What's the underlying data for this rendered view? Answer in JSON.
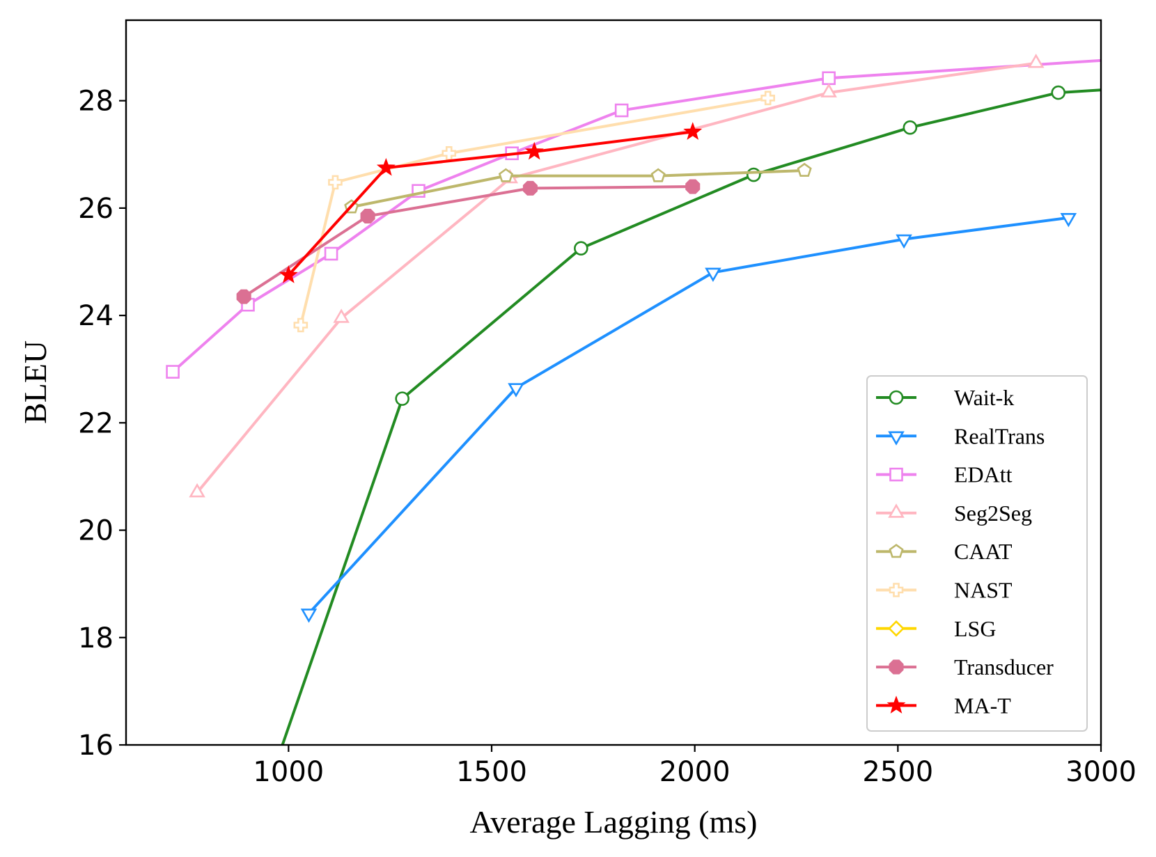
{
  "chart_data": {
    "type": "line",
    "title": "",
    "xlabel": "Average Lagging (ms)",
    "ylabel": "BLEU",
    "xlim": [
      600,
      3000
    ],
    "ylim": [
      16,
      29.5
    ],
    "xticks": [
      1000,
      1500,
      2000,
      2500,
      3000
    ],
    "yticks": [
      16,
      18,
      20,
      22,
      24,
      26,
      28
    ],
    "grid": false,
    "legend_position": "bottom-right",
    "series": [
      {
        "name": "Wait-k",
        "color": "#228B22",
        "marker": "circle",
        "filled": false,
        "x": [
          985,
          1280,
          1720,
          2145,
          2530,
          2895,
          3000
        ],
        "y": [
          16.0,
          22.45,
          25.25,
          26.62,
          27.5,
          28.15,
          28.2
        ]
      },
      {
        "name": "RealTrans",
        "color": "#1E90FF",
        "marker": "triangle-down",
        "filled": false,
        "x": [
          1050,
          1560,
          2045,
          2515,
          2920
        ],
        "y": [
          18.45,
          22.65,
          24.8,
          25.42,
          25.82
        ]
      },
      {
        "name": "EDAtt",
        "color": "#EE82EE",
        "marker": "square",
        "filled": false,
        "x": [
          715,
          900,
          1105,
          1320,
          1550,
          1820,
          2330,
          3000
        ],
        "y": [
          22.95,
          24.2,
          25.15,
          26.32,
          27.02,
          27.82,
          28.42,
          28.75
        ]
      },
      {
        "name": "Seg2Seg",
        "color": "#FFB6C1",
        "marker": "triangle-up",
        "filled": false,
        "x": [
          775,
          1130,
          1545,
          2330,
          2840
        ],
        "y": [
          20.7,
          23.95,
          26.55,
          28.15,
          28.7
        ]
      },
      {
        "name": "CAAT",
        "color": "#BDB76B",
        "marker": "pentagon",
        "filled": false,
        "x": [
          1155,
          1535,
          1910,
          2270
        ],
        "y": [
          26.02,
          26.6,
          26.6,
          26.7
        ]
      },
      {
        "name": "NAST",
        "color": "#FFDEAD",
        "marker": "plus",
        "filled": false,
        "x": [
          1030,
          1115,
          1395,
          2180
        ],
        "y": [
          23.82,
          26.48,
          27.02,
          28.05
        ]
      },
      {
        "name": "LSG",
        "color": "#FFD700",
        "marker": "diamond",
        "filled": false,
        "x": [],
        "y": []
      },
      {
        "name": "Transducer",
        "color": "#DB7093",
        "marker": "octagon",
        "filled": true,
        "x": [
          890,
          1195,
          1595,
          1995
        ],
        "y": [
          24.35,
          25.85,
          26.37,
          26.4
        ]
      },
      {
        "name": "MA-T",
        "color": "#FF0000",
        "marker": "star",
        "filled": true,
        "x": [
          1000,
          1240,
          1605,
          1995
        ],
        "y": [
          24.75,
          26.75,
          27.05,
          27.42
        ]
      }
    ]
  }
}
